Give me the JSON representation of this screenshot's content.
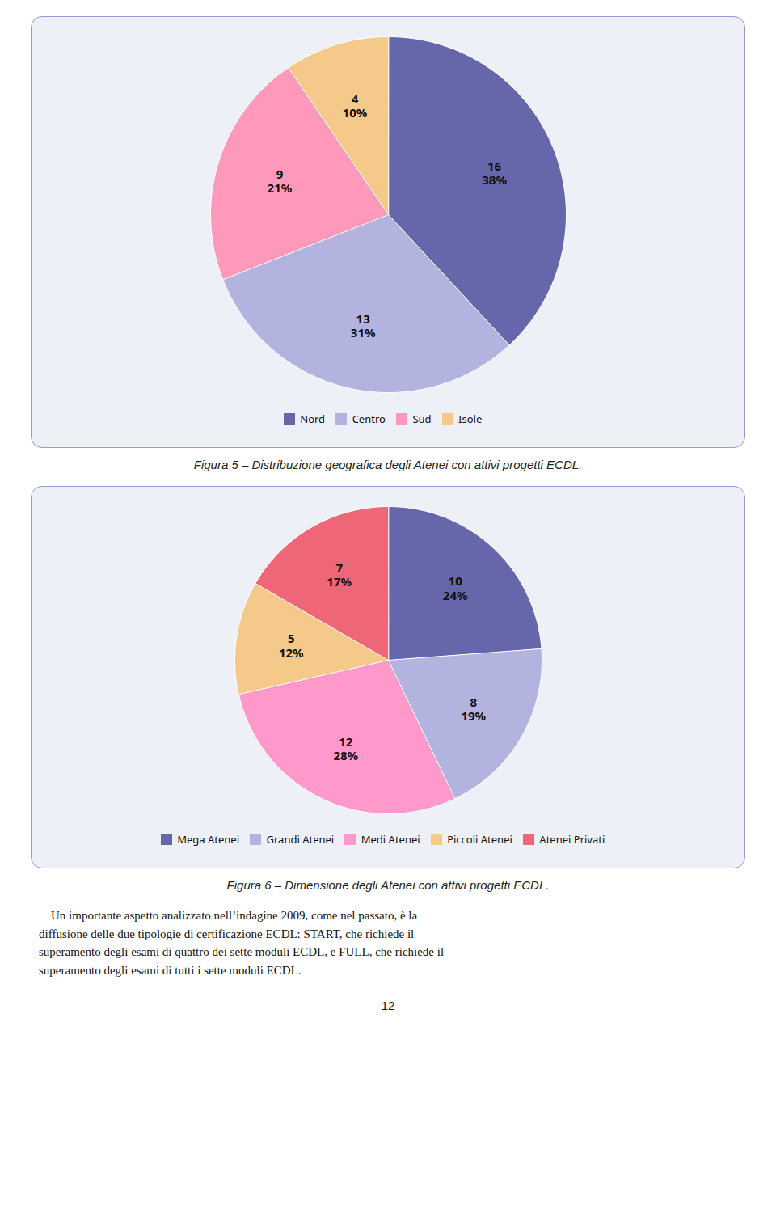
{
  "chart_data": [
    {
      "type": "pie",
      "categories": [
        "Nord",
        "Centro",
        "Sud",
        "Isole"
      ],
      "values": [
        16,
        13,
        9,
        4
      ],
      "percentages": [
        38,
        31,
        21,
        10
      ],
      "percentage_labels": [
        "38%",
        "31%",
        "21%",
        "10%"
      ],
      "colors": [
        "#6666aa",
        "#b3b3e0",
        "#ff99bb",
        "#f5c98a"
      ],
      "data_labels": true,
      "legend": "bottom",
      "caption": "Figura 5 – Distribuzione geografica degli Atenei con attivi progetti ECDL."
    },
    {
      "type": "pie",
      "categories": [
        "Mega Atenei",
        "Grandi Atenei",
        "Medi Atenei",
        "Piccoli Atenei",
        "Atenei Privati"
      ],
      "values": [
        10,
        8,
        12,
        5,
        7
      ],
      "percentages": [
        24,
        19,
        28,
        12,
        17
      ],
      "percentage_labels": [
        "24%",
        "19%",
        "28%",
        "12%",
        "17%"
      ],
      "colors": [
        "#6666aa",
        "#b3b3e0",
        "#ff99cc",
        "#f5c98a",
        "#ee6677"
      ],
      "data_labels": true,
      "legend": "bottom",
      "caption": "Figura 6 – Dimensione degli Atenei con attivi progetti ECDL."
    }
  ],
  "body_text": [
    "    Un importante aspetto analizzato nell’indagine 2009, come nel passato, è la",
    "diffusione delle due tipologie di certificazione ECDL: START, che richiede il",
    "superamento degli esami di quattro dei sette moduli ECDL, e FULL, che richiede il",
    "superamento degli esami di tutti i sette moduli ECDL."
  ],
  "page_number": "12"
}
